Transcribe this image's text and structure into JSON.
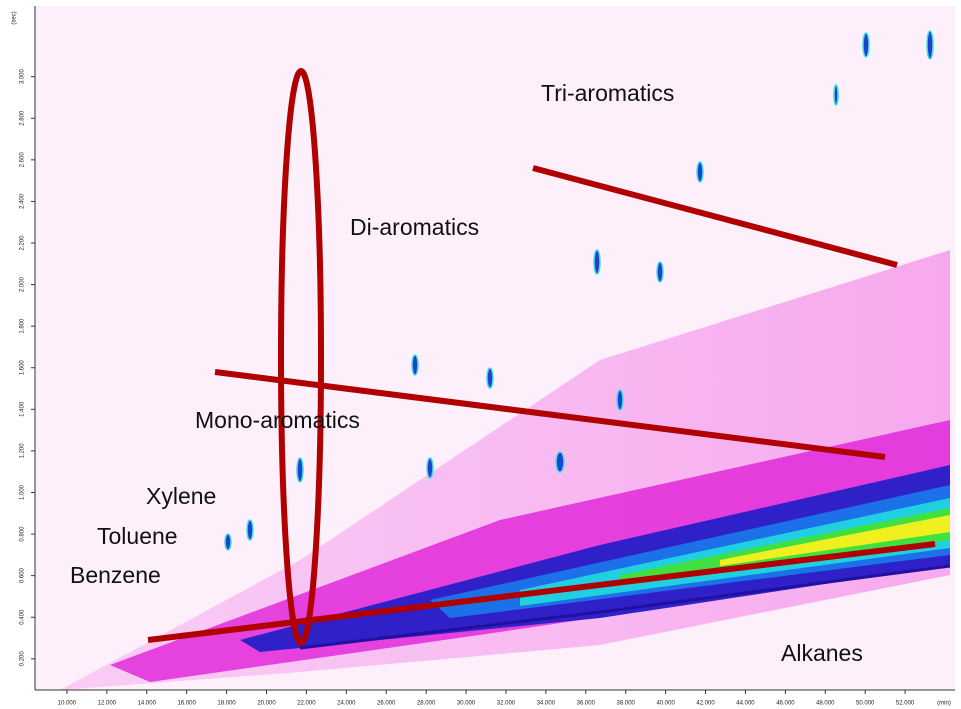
{
  "chart_data": {
    "type": "contour",
    "x_label": "(min)",
    "y_label": "(sec)",
    "xlim": [
      8.4,
      54.5
    ],
    "ylim": [
      0.05,
      3.34
    ],
    "xticks": [
      {
        "value": 10,
        "label": "10.000"
      },
      {
        "value": 12,
        "label": "12.000"
      },
      {
        "value": 14,
        "label": "14.000"
      },
      {
        "value": 16,
        "label": "16.000"
      },
      {
        "value": 18,
        "label": "18.000"
      },
      {
        "value": 20,
        "label": "20.000"
      },
      {
        "value": 22,
        "label": "22.000"
      },
      {
        "value": 24,
        "label": "24.000"
      },
      {
        "value": 26,
        "label": "26.000"
      },
      {
        "value": 28,
        "label": "28.000"
      },
      {
        "value": 30,
        "label": "30.000"
      },
      {
        "value": 32,
        "label": "32.000"
      },
      {
        "value": 34,
        "label": "34.000"
      },
      {
        "value": 36,
        "label": "36.000"
      },
      {
        "value": 38,
        "label": "38.000"
      },
      {
        "value": 40,
        "label": "40.000"
      },
      {
        "value": 42,
        "label": "42.000"
      },
      {
        "value": 44,
        "label": "44.000"
      },
      {
        "value": 46,
        "label": "46.000"
      },
      {
        "value": 48,
        "label": "48.000"
      },
      {
        "value": 50,
        "label": "50.000"
      },
      {
        "value": 52,
        "label": "52.000"
      }
    ],
    "yticks": [
      {
        "value": 0.2,
        "label": "0.200"
      },
      {
        "value": 0.4,
        "label": "0.400"
      },
      {
        "value": 0.6,
        "label": "0.600"
      },
      {
        "value": 0.8,
        "label": "0.800"
      },
      {
        "value": 1,
        "label": "1.000"
      },
      {
        "value": 1.2,
        "label": "1.200"
      },
      {
        "value": 1.4,
        "label": "1.400"
      },
      {
        "value": 1.6,
        "label": "1.600"
      },
      {
        "value": 1.8,
        "label": "1.800"
      },
      {
        "value": 2,
        "label": "2.000"
      },
      {
        "value": 2.2,
        "label": "2.200"
      },
      {
        "value": 2.4,
        "label": "2.400"
      },
      {
        "value": 2.6,
        "label": "2.600"
      },
      {
        "value": 2.8,
        "label": "2.800"
      },
      {
        "value": 3,
        "label": "3.000"
      }
    ],
    "annotations": [
      "Tri-aromatics",
      "Di-aromatics",
      "Mono-aromatics",
      "Xylene",
      "Toluene",
      "Benzene",
      "Alkanes"
    ]
  }
}
